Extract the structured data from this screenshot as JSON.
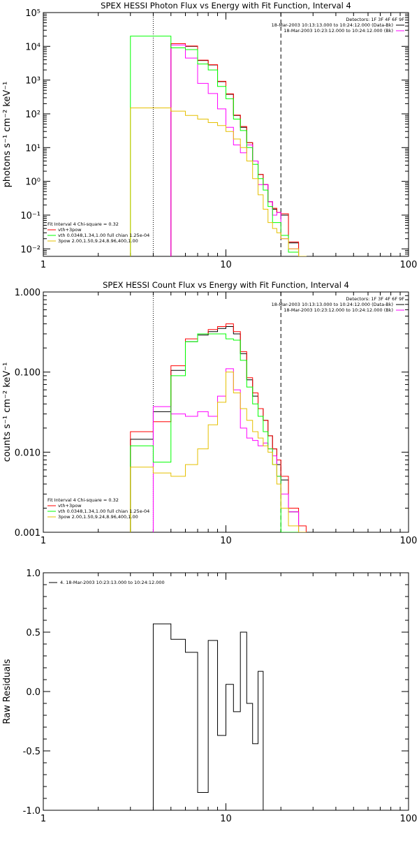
{
  "chart_data": [
    {
      "type": "line",
      "title": "SPEX HESSI Photon Flux vs Energy with Fit Function, Interval 4",
      "ylabel": "photons s⁻¹ cm⁻² keV⁻¹",
      "xlabel": "",
      "x_scale": "log",
      "y_scale": "log",
      "xlim": [
        1,
        100
      ],
      "ylim": [
        0.006,
        100000
      ],
      "x_ticks": [
        "1",
        "10",
        "100"
      ],
      "y_ticks": [
        "10⁻²",
        "10⁻¹",
        "10⁰",
        "10¹",
        "10²",
        "10³",
        "10⁴",
        "10⁵"
      ],
      "y_tick_values": [
        0.01,
        0.1,
        1,
        10,
        100,
        1000,
        10000,
        100000
      ],
      "vlines": [
        {
          "x": 4,
          "style": "dotted"
        },
        {
          "x": 20,
          "style": "dashed"
        }
      ],
      "top_legend": [
        "Detectors: 1F 3F 4F 6F 9F",
        "18-Mar-2003 10:13:13.000 to 10:24:12.000 (Data-Bk)",
        "18-Mar-2003 10:23:12.000 to 10:24:12.000 (Bk)"
      ],
      "fit_legend": [
        "Fit Interval  4    Chi-square = 0.32",
        "vth+3pow",
        "vth 0.0348,1.34,1.00  full chian 1.25e-04",
        "3pow  2.00,1.50,9.24,8.96,400,1.00"
      ],
      "series": [
        {
          "name": "",
          "color": "#000000",
          "x": [
            3,
            4,
            5,
            6,
            7,
            8,
            9,
            10,
            11,
            12,
            13,
            14,
            15,
            16,
            17,
            18,
            19,
            20,
            22,
            25
          ],
          "values": [
            null,
            null,
            12000,
            10000,
            3800,
            2800,
            900,
            380,
            90,
            40,
            14,
            4,
            1.6,
            0.8,
            0.25,
            0.15,
            0.12,
            0.1,
            0.015,
            0.006
          ]
        },
        {
          "name": "",
          "color": "#ff0000",
          "x": [
            3,
            4,
            5,
            6,
            7,
            8,
            9,
            10,
            11,
            12,
            13,
            14,
            15,
            16,
            17,
            18,
            19,
            20,
            22,
            25
          ],
          "values": [
            null,
            null,
            12000,
            10200,
            3900,
            2850,
            920,
            390,
            92,
            42,
            14,
            4,
            1.6,
            0.8,
            0.25,
            0.16,
            0.12,
            0.11,
            0.016,
            0.006
          ]
        },
        {
          "name": "",
          "color": "#ff00ff",
          "x": [
            3,
            4,
            5,
            6,
            7,
            8,
            9,
            10,
            11,
            12,
            13,
            14,
            15,
            16,
            17,
            18,
            19,
            20,
            22,
            25
          ],
          "values": [
            null,
            null,
            11000,
            4500,
            800,
            400,
            140,
            40,
            12,
            7,
            12,
            4,
            0.8,
            0.8,
            0.25,
            0.1,
            0.12,
            0.02,
            0.01,
            0.006
          ]
        },
        {
          "name": "",
          "color": "#00ff00",
          "x": [
            3,
            4,
            5,
            6,
            7,
            8,
            9,
            10,
            11,
            12,
            13,
            14,
            15,
            16,
            17,
            18,
            19,
            20,
            22,
            25
          ],
          "values": [
            20000,
            20000,
            9000,
            8000,
            3000,
            2000,
            650,
            280,
            70,
            32,
            10,
            3.2,
            1.2,
            0.55,
            0.18,
            0.06,
            0.06,
            0.025,
            0.008,
            0.006
          ]
        },
        {
          "name": "",
          "color": "#e5c000",
          "x": [
            3,
            4,
            5,
            6,
            7,
            8,
            9,
            10,
            11,
            12,
            13,
            14,
            15,
            16,
            17,
            18,
            19,
            20,
            22,
            25
          ],
          "values": [
            150,
            150,
            120,
            90,
            70,
            55,
            45,
            30,
            18,
            10,
            4,
            1.2,
            0.4,
            0.15,
            0.06,
            0.04,
            0.03,
            0.02,
            0.01,
            0.006
          ]
        }
      ]
    },
    {
      "type": "line",
      "title": "SPEX HESSI Count Flux vs Energy with Fit Function, Interval 4",
      "ylabel": "counts s⁻¹ cm⁻² keV⁻¹",
      "xlabel": "",
      "x_scale": "log",
      "y_scale": "log",
      "xlim": [
        1,
        100
      ],
      "ylim": [
        0.001,
        1.0
      ],
      "x_ticks": [
        "1",
        "10",
        "100"
      ],
      "y_ticks": [
        "0.001",
        "0.010",
        "0.100",
        "1.000"
      ],
      "y_tick_values": [
        0.001,
        0.01,
        0.1,
        1.0
      ],
      "vlines": [
        {
          "x": 4,
          "style": "dotted"
        },
        {
          "x": 20,
          "style": "dashed"
        }
      ],
      "top_legend": [
        "Detectors: 1F 3F 4F 6F 9F",
        "18-Mar-2003 10:13:13.000 to 10:24:12.000 (Data-Bk)",
        "18-Mar-2003 10:23:12.000 to 10:24:12.000 (Bk)"
      ],
      "fit_legend": [
        "Fit Interval  4    Chi-square = 0.32",
        "vth+3pow",
        "vth 0.0348,1.34,1.00  full chian 1.25e-04",
        "3pow  2.00,1.50,9.24,8.96,400,1.00"
      ],
      "series": [
        {
          "name": "",
          "color": "#000000",
          "x": [
            3,
            4,
            5,
            6,
            7,
            8,
            9,
            10,
            11,
            12,
            13,
            14,
            15,
            16,
            17,
            18,
            19,
            20,
            22,
            25
          ],
          "values": [
            0.0145,
            0.032,
            0.105,
            0.24,
            0.29,
            0.32,
            0.35,
            0.37,
            0.3,
            0.17,
            0.08,
            0.05,
            0.035,
            0.025,
            0.016,
            0.011,
            0.007,
            0.0045,
            0.0018,
            0.001
          ]
        },
        {
          "name": "",
          "color": "#ff0000",
          "x": [
            3,
            4,
            5,
            6,
            7,
            8,
            9,
            10,
            11,
            12,
            13,
            14,
            15,
            16,
            17,
            18,
            19,
            20,
            22,
            25
          ],
          "values": [
            0.018,
            0.024,
            0.12,
            0.26,
            0.3,
            0.34,
            0.37,
            0.4,
            0.32,
            0.18,
            0.085,
            0.055,
            0.035,
            0.025,
            0.016,
            0.011,
            0.008,
            0.005,
            0.002,
            0.0012
          ]
        },
        {
          "name": "",
          "color": "#ff00ff",
          "x": [
            3,
            4,
            5,
            6,
            7,
            8,
            9,
            10,
            11,
            12,
            13,
            14,
            15,
            16,
            17,
            18,
            19,
            20,
            22,
            25
          ],
          "values": [
            null,
            0.037,
            0.03,
            0.028,
            0.032,
            0.028,
            0.05,
            0.11,
            0.06,
            0.02,
            0.015,
            0.014,
            0.012,
            0.013,
            0.011,
            0.009,
            0.005,
            0.003,
            0.0018,
            0.001
          ]
        },
        {
          "name": "",
          "color": "#00ff00",
          "x": [
            3,
            4,
            5,
            6,
            7,
            8,
            9,
            10,
            11,
            12,
            13,
            14,
            15,
            16,
            17,
            18,
            19,
            20,
            22,
            25
          ],
          "values": [
            0.012,
            0.0075,
            0.09,
            0.24,
            0.3,
            0.3,
            0.3,
            0.26,
            0.25,
            0.14,
            0.065,
            0.04,
            0.028,
            0.018,
            0.011,
            0.007,
            0.005,
            0.001,
            0.001,
            0.001
          ]
        },
        {
          "name": "",
          "color": "#e5c000",
          "x": [
            3,
            4,
            5,
            6,
            7,
            8,
            9,
            10,
            11,
            12,
            13,
            14,
            15,
            16,
            17,
            18,
            19,
            20,
            22,
            25
          ],
          "values": [
            0.0065,
            0.0055,
            0.005,
            0.007,
            0.011,
            0.022,
            0.042,
            0.1,
            0.055,
            0.035,
            0.025,
            0.018,
            0.015,
            0.012,
            0.01,
            0.007,
            0.004,
            0.002,
            0.0012,
            0.001
          ]
        }
      ]
    },
    {
      "type": "line",
      "title": "",
      "ylabel": "Raw Residuals",
      "xlabel": "",
      "x_scale": "log",
      "y_scale": "linear",
      "xlim": [
        1,
        100
      ],
      "ylim": [
        -1.0,
        1.0
      ],
      "x_ticks": [
        "1",
        "10",
        "100"
      ],
      "y_ticks": [
        "-1.0",
        "-0.5",
        "0.0",
        "0.5",
        "1.0"
      ],
      "y_tick_values": [
        -1.0,
        -0.5,
        0.0,
        0.5,
        1.0
      ],
      "legend": [
        "4. 18-Mar-2003 10:23:13.000 to 10:24:12.000"
      ],
      "series": [
        {
          "name": "4. 18-Mar-2003 10:23:13.000 to 10:24:12.000",
          "color": "#000000",
          "x": [
            4,
            5,
            6,
            7,
            8,
            9,
            10,
            11,
            12,
            13,
            14,
            15,
            16,
            17,
            18,
            19,
            20
          ],
          "values": [
            0.57,
            0.44,
            0.33,
            -0.85,
            0.43,
            -0.37,
            0.06,
            -0.17,
            0.5,
            -0.1,
            -0.44,
            0.17,
            null,
            null,
            null,
            null,
            null
          ]
        }
      ]
    }
  ]
}
